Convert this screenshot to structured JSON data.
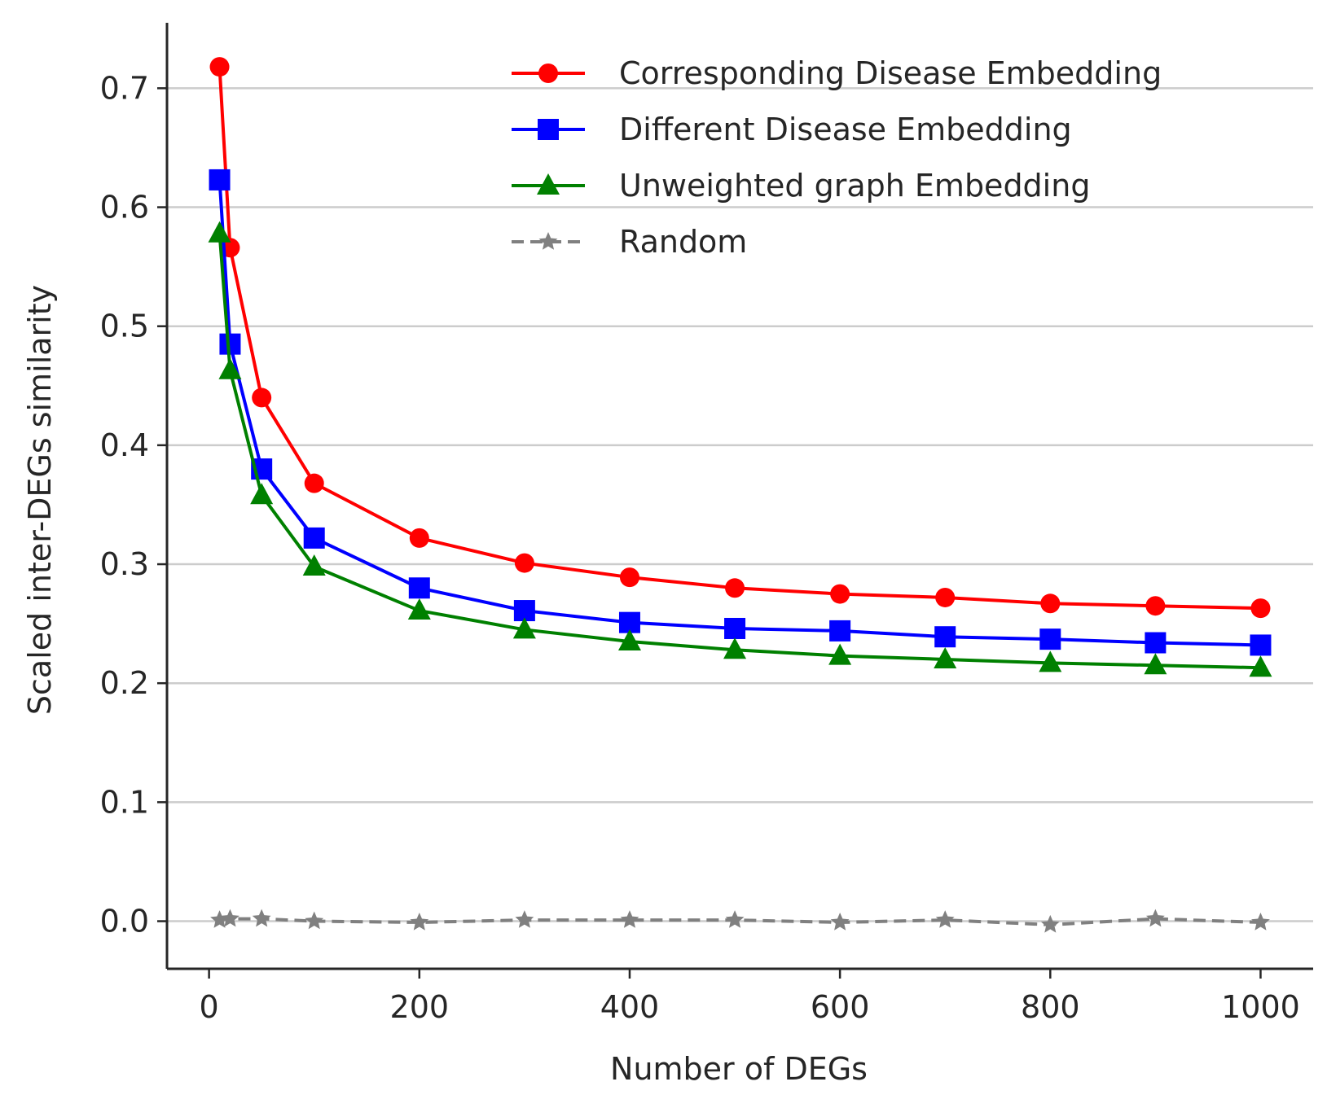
{
  "chart_data": {
    "type": "line",
    "title": "",
    "xlabel": "Number of DEGs",
    "ylabel": "Scaled inter-DEGs similarity",
    "xlim": [
      -40,
      1050
    ],
    "ylim": [
      -0.04,
      0.755
    ],
    "xticks": [
      0,
      200,
      400,
      600,
      800,
      1000
    ],
    "xtick_labels": [
      "0",
      "200",
      "400",
      "600",
      "800",
      "1000"
    ],
    "yticks": [
      0.0,
      0.1,
      0.2,
      0.3,
      0.4,
      0.5,
      0.6,
      0.7
    ],
    "ytick_labels": [
      "0.0",
      "0.1",
      "0.2",
      "0.3",
      "0.4",
      "0.5",
      "0.6",
      "0.7"
    ],
    "grid": "horizontal",
    "legend_position": "top-right",
    "x": [
      10,
      20,
      50,
      100,
      200,
      300,
      400,
      500,
      600,
      700,
      800,
      900,
      1000
    ],
    "series": [
      {
        "name": "Corresponding Disease Embedding",
        "color": "#ff0000",
        "marker": "circle",
        "dash": "solid",
        "values": [
          0.718,
          0.566,
          0.44,
          0.368,
          0.322,
          0.301,
          0.289,
          0.28,
          0.275,
          0.272,
          0.267,
          0.265,
          0.263
        ]
      },
      {
        "name": "Different Disease Embedding",
        "color": "#0000ff",
        "marker": "square",
        "dash": "solid",
        "values": [
          0.623,
          0.485,
          0.38,
          0.322,
          0.28,
          0.261,
          0.251,
          0.246,
          0.244,
          0.239,
          0.237,
          0.234,
          0.232
        ]
      },
      {
        "name": "Unweighted graph Embedding",
        "color": "#008000",
        "marker": "triangle",
        "dash": "solid",
        "values": [
          0.578,
          0.463,
          0.358,
          0.298,
          0.261,
          0.245,
          0.235,
          0.228,
          0.223,
          0.22,
          0.217,
          0.215,
          0.213
        ]
      },
      {
        "name": "Random",
        "color": "#808080",
        "marker": "star",
        "dash": "dashed",
        "values": [
          0.001,
          0.002,
          0.002,
          0.0,
          -0.001,
          0.001,
          0.001,
          0.001,
          -0.001,
          0.001,
          -0.003,
          0.002,
          -0.001
        ]
      }
    ]
  }
}
